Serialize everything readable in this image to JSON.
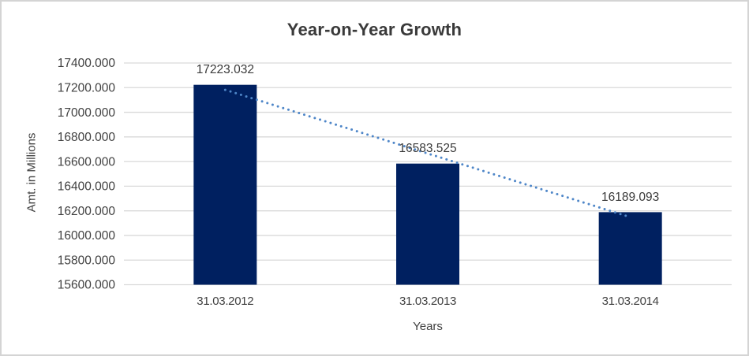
{
  "chart_data": {
    "type": "bar",
    "title": "Year-on-Year Growth",
    "xlabel": "Years",
    "ylabel": "Amt. in Millions",
    "categories": [
      "31.03.2012",
      "31.03.2013",
      "31.03.2014"
    ],
    "values": [
      17223.032,
      16583.525,
      16189.093
    ],
    "data_labels": [
      "17223.032",
      "16583.525",
      "16189.093"
    ],
    "ylim": [
      15600,
      17400
    ],
    "ytick_step": 200,
    "ytick_labels": [
      "15600.000",
      "15800.000",
      "16000.000",
      "16200.000",
      "16400.000",
      "16600.000",
      "16800.000",
      "17000.000",
      "17200.000",
      "17400.000"
    ],
    "grid": true,
    "legend": false,
    "trendline": {
      "type": "linear",
      "style": "dotted"
    },
    "colors": {
      "bar": "#002060",
      "trendline": "#4e86c8",
      "gridline": "#d9d9d9",
      "axis_text": "#404040",
      "label_text": "#3a3a3a",
      "title_text": "#3a3a3a",
      "frame_border": "#d4d4d4",
      "background": "#ffffff"
    }
  }
}
